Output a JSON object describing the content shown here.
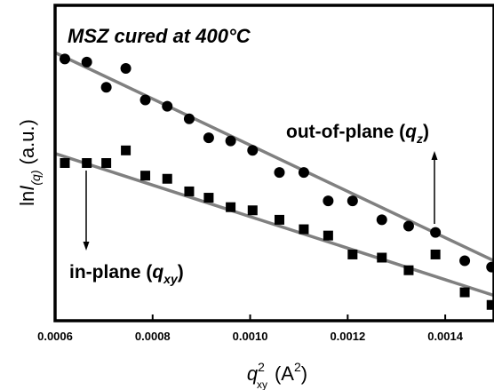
{
  "chart_data": {
    "type": "scatter",
    "title": "MSZ cured at 400 °C",
    "title_main": "MSZ cured at 400",
    "title_unit": "°C",
    "xlabel": {
      "base": "q",
      "sup": "2",
      "sub": "xy",
      "units": "(A",
      "units_sup": "2",
      "units_close": ")"
    },
    "ylabel": {
      "prefix": "ln",
      "var": "I",
      "sub": "(q)",
      "units": "(a.u.)"
    },
    "xlim": [
      0.0006,
      0.0015
    ],
    "ylim": [
      0,
      100
    ],
    "x_ticks": [
      "0.0006",
      "0.0008",
      "0.0010",
      "0.0012",
      "0.0014"
    ],
    "x_tick_values": [
      0.0006,
      0.0008,
      0.001,
      0.0012,
      0.0014
    ],
    "series": [
      {
        "marker": "circle",
        "color": "#000000",
        "annotation": {
          "text": "out-of-plane (",
          "var": "q",
          "sub": "z",
          "close": ")"
        },
        "x": [
          0.00062,
          0.000665,
          0.000705,
          0.000745,
          0.000785,
          0.00083,
          0.000875,
          0.000915,
          0.00096,
          0.001005,
          0.00106,
          0.00111,
          0.00116,
          0.00121,
          0.00127,
          0.001325,
          0.00138,
          0.00144,
          0.001495
        ],
        "y": [
          83,
          82,
          74,
          80,
          70,
          68,
          64,
          58,
          57,
          54,
          47,
          47,
          38,
          38,
          32,
          30,
          28,
          19,
          17
        ],
        "fit": [
          [
            0.0006,
            85
          ],
          [
            0.0015,
            19
          ]
        ]
      },
      {
        "marker": "square",
        "color": "#000000",
        "annotation": {
          "text": "in-plane (",
          "var": "q",
          "sub": "xy",
          "close": ")"
        },
        "x": [
          0.00062,
          0.000665,
          0.000705,
          0.000745,
          0.000785,
          0.00083,
          0.000875,
          0.000915,
          0.00096,
          0.001005,
          0.00106,
          0.00111,
          0.00116,
          0.00121,
          0.00127,
          0.001325,
          0.00138,
          0.00144,
          0.001495
        ],
        "y": [
          50,
          50,
          50,
          54,
          46,
          45,
          41,
          39,
          36,
          35,
          32,
          29,
          27,
          21,
          20,
          16,
          21,
          9,
          5
        ],
        "fit": [
          [
            0.0006,
            53
          ],
          [
            0.0015,
            8
          ]
        ]
      }
    ]
  }
}
